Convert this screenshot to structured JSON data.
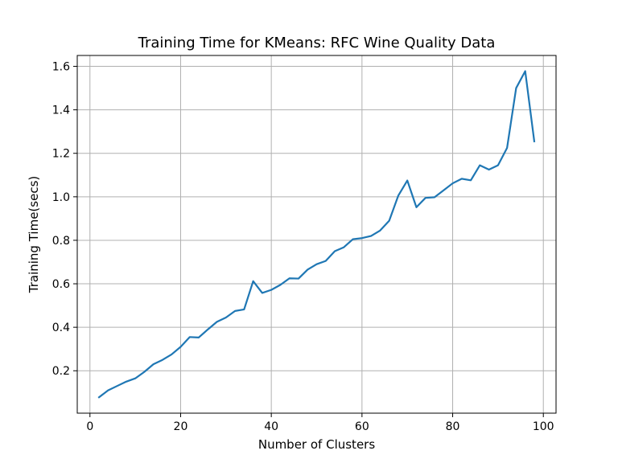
{
  "chart_data": {
    "type": "line",
    "title": "Training Time for KMeans: RFC Wine Quality Data",
    "xlabel": "Number of Clusters",
    "ylabel": "Training Time(secs)",
    "xlim": [
      -2.8,
      102.8
    ],
    "ylim": [
      0.005,
      1.65
    ],
    "xticks": [
      0,
      20,
      40,
      60,
      80,
      100
    ],
    "yticks": [
      0.2,
      0.4,
      0.6,
      0.8,
      1.0,
      1.2,
      1.4,
      1.6
    ],
    "xtick_labels": [
      "0",
      "20",
      "40",
      "60",
      "80",
      "100"
    ],
    "ytick_labels": [
      "0.2",
      "0.4",
      "0.6",
      "0.8",
      "1.0",
      "1.2",
      "1.4",
      "1.6"
    ],
    "grid": true,
    "series": [
      {
        "color": "#1f77b4",
        "x": [
          2,
          4,
          6,
          8,
          10,
          12,
          14,
          16,
          18,
          20,
          22,
          24,
          26,
          28,
          30,
          32,
          34,
          36,
          38,
          40,
          42,
          44,
          46,
          48,
          50,
          52,
          54,
          56,
          58,
          60,
          62,
          64,
          66,
          68,
          70,
          72,
          74,
          76,
          78,
          80,
          82,
          84,
          86,
          88,
          90,
          92,
          94,
          96,
          98
        ],
        "y": [
          0.078,
          0.11,
          0.13,
          0.15,
          0.165,
          0.195,
          0.23,
          0.25,
          0.275,
          0.31,
          0.355,
          0.353,
          0.39,
          0.425,
          0.445,
          0.475,
          0.482,
          0.612,
          0.558,
          0.572,
          0.595,
          0.625,
          0.624,
          0.665,
          0.69,
          0.705,
          0.75,
          0.768,
          0.805,
          0.81,
          0.82,
          0.845,
          0.89,
          1.005,
          1.075,
          0.952,
          0.995,
          0.998,
          1.03,
          1.062,
          1.083,
          1.076,
          1.145,
          1.125,
          1.145,
          1.225,
          1.5,
          1.578,
          1.255
        ]
      }
    ]
  }
}
